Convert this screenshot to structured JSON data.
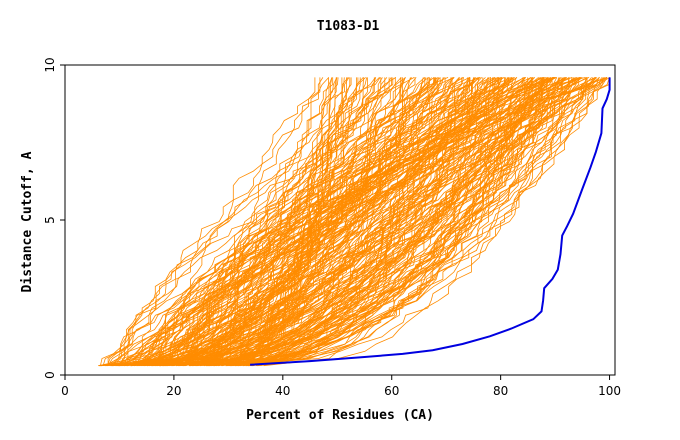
{
  "chart_data": {
    "type": "line",
    "title": "T1083-D1",
    "xlabel": "Percent of Residues (CA)",
    "ylabel": "Distance Cutoff, A",
    "xlim": [
      0,
      101
    ],
    "ylim": [
      0,
      10
    ],
    "xticks": [
      "0",
      "20",
      "40",
      "60",
      "80",
      "100"
    ],
    "yticks": [
      "0",
      "5",
      "10"
    ],
    "grid": false,
    "colors": {
      "background_models": "#ff8c00",
      "highlight": "#0000e0"
    },
    "highlight_series": {
      "x": [
        34,
        45,
        55,
        62,
        67.5,
        73,
        78,
        82,
        86,
        87.5,
        87.8,
        88,
        89.5,
        90.5,
        91,
        91.3,
        92.2,
        93.3,
        95,
        96.5,
        97.5,
        98.5,
        98.7,
        99.5,
        100,
        100
      ],
      "y": [
        0.33,
        0.45,
        0.58,
        0.68,
        0.8,
        1.0,
        1.25,
        1.5,
        1.8,
        2.05,
        2.4,
        2.8,
        3.1,
        3.4,
        3.9,
        4.5,
        4.8,
        5.2,
        6.0,
        6.7,
        7.2,
        7.8,
        8.6,
        8.9,
        9.2,
        9.6
      ]
    }
  }
}
